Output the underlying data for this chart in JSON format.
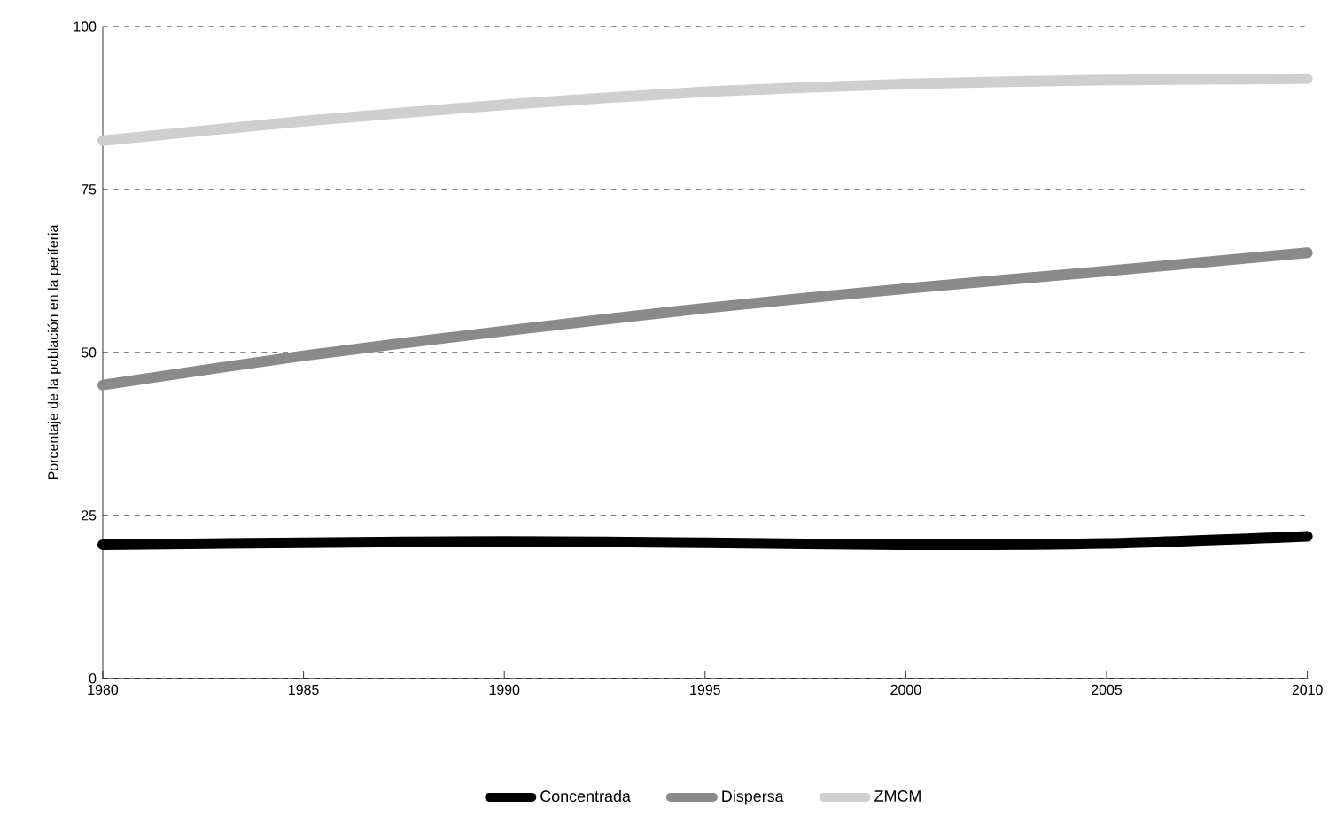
{
  "chart_data": {
    "type": "line",
    "ylabel": "Porcentaje de la población en la periferia",
    "x": [
      1980,
      1985,
      1990,
      1995,
      2000,
      2005,
      2010
    ],
    "series": [
      {
        "name": "Concentrada",
        "color": "#000000",
        "values": [
          20.5,
          20.8,
          21,
          20.8,
          20.5,
          20.7,
          21.8
        ]
      },
      {
        "name": "Dispersa",
        "color": "#8a8a8b",
        "values": [
          45,
          49.5,
          53.3,
          56.8,
          59.8,
          62.5,
          65.3
        ]
      },
      {
        "name": "ZMCM",
        "color": "#cfcfcf",
        "values": [
          82.5,
          85.5,
          88,
          90,
          91.2,
          91.8,
          92
        ]
      }
    ],
    "xlim": [
      1980,
      2010
    ],
    "xticks": [
      1980,
      1985,
      1990,
      1995,
      2000,
      2005,
      2010
    ],
    "ylim": [
      0,
      100
    ],
    "yticks": [
      0,
      25,
      50,
      75,
      100
    ],
    "grid": "y",
    "legend": "bottom",
    "marker": "none",
    "line_style": "solid"
  }
}
